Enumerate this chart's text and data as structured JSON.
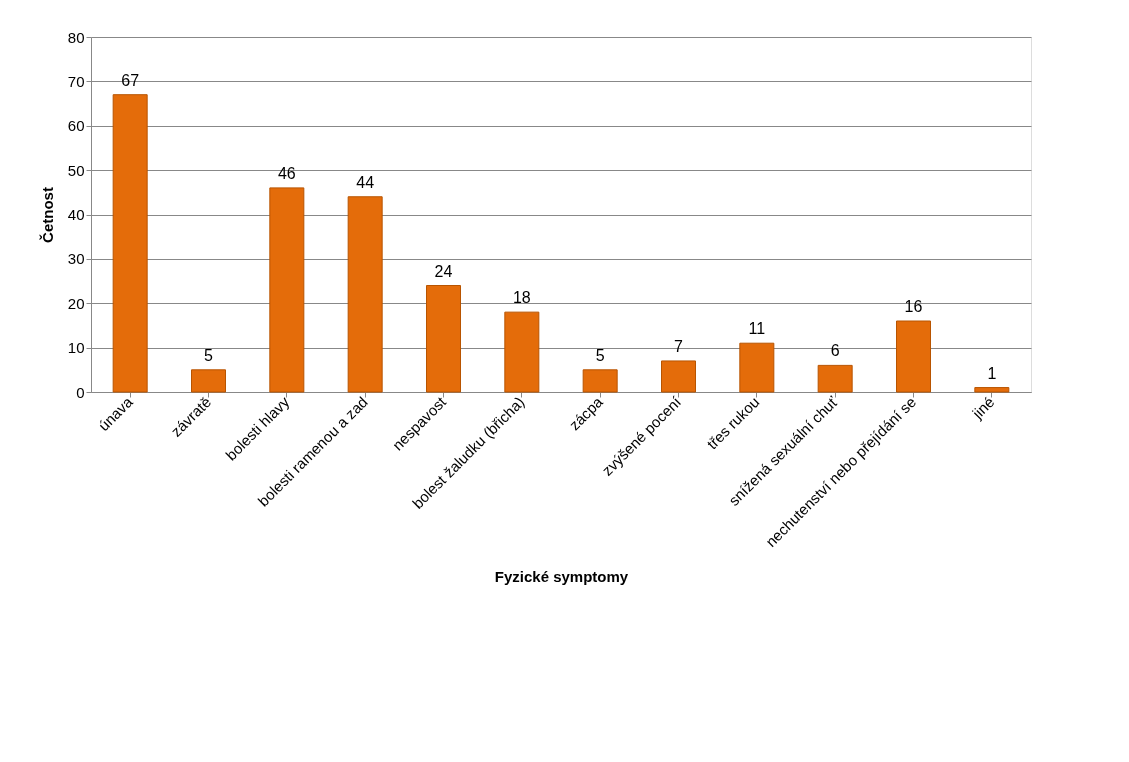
{
  "chart_data": {
    "type": "bar",
    "xlabel": "Fyzické symptomy",
    "ylabel": "Četnost",
    "categories": [
      "únava",
      "závratě",
      "bolesti hlavy",
      "bolesti ramenou a zad",
      "nespavost",
      "bolest žaludku (břicha)",
      "zácpa",
      "zvýšené pocení",
      "třes rukou",
      "snížená sexuální chuť",
      "nechutenství nebo přejídání se",
      "jiné"
    ],
    "values": [
      67,
      5,
      46,
      44,
      24,
      18,
      5,
      7,
      11,
      6,
      16,
      1
    ],
    "color": "#e46c0a",
    "ylim": [
      0,
      80
    ],
    "yticks": [
      0,
      10,
      20,
      30,
      40,
      50,
      60,
      70,
      80
    ],
    "grid": "y",
    "data_labels": true
  }
}
